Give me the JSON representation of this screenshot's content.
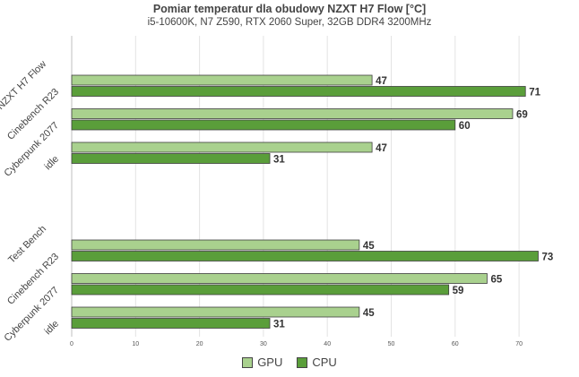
{
  "chart_data": {
    "type": "bar",
    "orientation": "horizontal",
    "title": "Pomiar temperatur dla obudowy NZXT H7 Flow [°C]",
    "subtitle": "i5-10600K, N7 Z590, RTX 2060 Super, 32GB DDR4 3200MHz",
    "xlim": [
      0,
      75
    ],
    "xticks": [
      0,
      10,
      20,
      30,
      40,
      50,
      60,
      70
    ],
    "grid": true,
    "legend_position": "bottom",
    "series": [
      {
        "name": "GPU",
        "color": "#a9d18e"
      },
      {
        "name": "CPU",
        "color": "#5a9e3a"
      }
    ],
    "groups": [
      {
        "name": "NZXT H7 Flow",
        "categories": [
          {
            "label": "Cinebench R23",
            "GPU": 47,
            "CPU": 71
          },
          {
            "label": "Cyberpunk 2077",
            "GPU": 69,
            "CPU": 60
          },
          {
            "label": "idle",
            "GPU": 47,
            "CPU": 31
          }
        ]
      },
      {
        "name": "Test Bench",
        "categories": [
          {
            "label": "Cinebench R23",
            "GPU": 45,
            "CPU": 73
          },
          {
            "label": "Cyberpunk 2077",
            "GPU": 65,
            "CPU": 59
          },
          {
            "label": "idle",
            "GPU": 45,
            "CPU": 31
          }
        ]
      }
    ]
  }
}
